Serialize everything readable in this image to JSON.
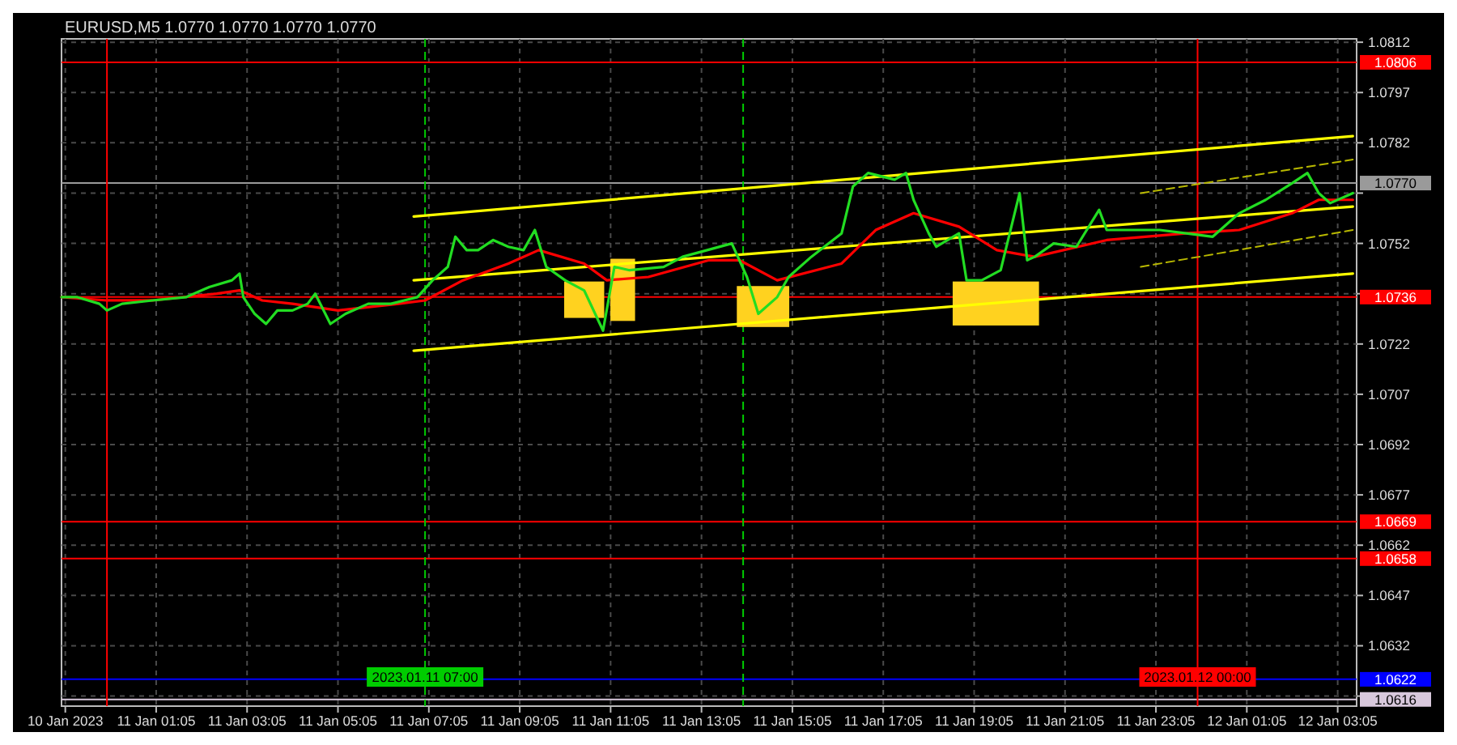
{
  "chart_data": {
    "type": "line",
    "title": "EURUSD,M5  1.0770 1.0770 1.0770 1.0770",
    "xlim": [
      "2023-01-10T23:00",
      "2023-01-12T03:30"
    ],
    "xticks": [
      {
        "value": "2023-01-10T23:05",
        "label": "10 Jan 2023"
      },
      {
        "value": "2023-01-11T01:05",
        "label": "11 Jan 01:05"
      },
      {
        "value": "2023-01-11T03:05",
        "label": "11 Jan 03:05"
      },
      {
        "value": "2023-01-11T05:05",
        "label": "11 Jan 05:05"
      },
      {
        "value": "2023-01-11T07:05",
        "label": "11 Jan 07:05"
      },
      {
        "value": "2023-01-11T09:05",
        "label": "11 Jan 09:05"
      },
      {
        "value": "2023-01-11T11:05",
        "label": "11 Jan 11:05"
      },
      {
        "value": "2023-01-11T13:05",
        "label": "11 Jan 13:05"
      },
      {
        "value": "2023-01-11T15:05",
        "label": "11 Jan 15:05"
      },
      {
        "value": "2023-01-11T17:05",
        "label": "11 Jan 17:05"
      },
      {
        "value": "2023-01-11T19:05",
        "label": "11 Jan 19:05"
      },
      {
        "value": "2023-01-11T21:05",
        "label": "11 Jan 21:05"
      },
      {
        "value": "2023-01-11T23:05",
        "label": "11 Jan 23:05"
      },
      {
        "value": "2023-01-12T01:05",
        "label": "12 Jan 01:05"
      },
      {
        "value": "2023-01-12T03:05",
        "label": "12 Jan 03:05"
      }
    ],
    "ylim": [
      1.0614,
      1.0813
    ],
    "yticks": [
      1.0812,
      1.0797,
      1.0782,
      {
        "value": 1.0767,
        "label": null
      },
      1.0752,
      {
        "value": 1.0737,
        "label": null
      },
      1.0722,
      1.0707,
      1.0692,
      1.0677,
      1.0662,
      1.0647,
      1.0632,
      {
        "value": 1.0617,
        "label": null
      }
    ],
    "grid": true,
    "series": [
      {
        "color": "#22dd22",
        "x": [
          "2023-01-10T23:00",
          "2023-01-10T23:20",
          "2023-01-10T23:50",
          "2023-01-11T00:00",
          "2023-01-11T00:20",
          "2023-01-11T01:00",
          "2023-01-11T01:45",
          "2023-01-11T02:15",
          "2023-01-11T02:45",
          "2023-01-11T02:55",
          "2023-01-11T03:00",
          "2023-01-11T03:15",
          "2023-01-11T03:30",
          "2023-01-11T03:45",
          "2023-01-11T04:05",
          "2023-01-11T04:25",
          "2023-01-11T04:35",
          "2023-01-11T04:55",
          "2023-01-11T05:15",
          "2023-01-11T05:45",
          "2023-01-11T06:15",
          "2023-01-11T06:50",
          "2023-01-11T07:10",
          "2023-01-11T07:30",
          "2023-01-11T07:40",
          "2023-01-11T07:55",
          "2023-01-11T08:10",
          "2023-01-11T08:30",
          "2023-01-11T08:50",
          "2023-01-11T09:10",
          "2023-01-11T09:25",
          "2023-01-11T09:40",
          "2023-01-11T10:05",
          "2023-01-11T10:30",
          "2023-01-11T10:55",
          "2023-01-11T11:10",
          "2023-01-11T11:30",
          "2023-01-11T12:15",
          "2023-01-11T12:40",
          "2023-01-11T13:45",
          "2023-01-11T14:05",
          "2023-01-11T14:20",
          "2023-01-11T14:45",
          "2023-01-11T15:00",
          "2023-01-11T15:30",
          "2023-01-11T16:10",
          "2023-01-11T16:25",
          "2023-01-11T16:45",
          "2023-01-11T17:20",
          "2023-01-11T17:35",
          "2023-01-11T17:45",
          "2023-01-11T18:05",
          "2023-01-11T18:15",
          "2023-01-11T18:45",
          "2023-01-11T18:55",
          "2023-01-11T19:15",
          "2023-01-11T19:40",
          "2023-01-11T20:05",
          "2023-01-11T20:15",
          "2023-01-11T20:25",
          "2023-01-11T20:50",
          "2023-01-11T21:20",
          "2023-01-11T21:50",
          "2023-01-11T22:00",
          "2023-01-11T22:45",
          "2023-01-11T23:10",
          "2023-01-11T23:45",
          "2023-01-12T00:20",
          "2023-01-12T00:55",
          "2023-01-12T01:30",
          "2023-01-12T02:05",
          "2023-01-12T02:25",
          "2023-01-12T02:40",
          "2023-01-12T02:55",
          "2023-01-12T03:25"
        ],
        "values": [
          1.0736,
          1.0736,
          1.0734,
          1.0732,
          1.0734,
          1.0735,
          1.0736,
          1.0739,
          1.0741,
          1.0743,
          1.0736,
          1.0731,
          1.0728,
          1.0732,
          1.0732,
          1.0734,
          1.0737,
          1.0728,
          1.0731,
          1.0734,
          1.0734,
          1.0736,
          1.0741,
          1.0745,
          1.0754,
          1.075,
          1.075,
          1.0753,
          1.0751,
          1.075,
          1.0756,
          1.0745,
          1.0741,
          1.0738,
          1.0726,
          1.0745,
          1.0744,
          1.0745,
          1.0748,
          1.0752,
          1.0742,
          1.0731,
          1.0736,
          1.0742,
          1.0748,
          1.0755,
          1.0769,
          1.0773,
          1.0771,
          1.0773,
          1.0765,
          1.0755,
          1.0751,
          1.0755,
          1.0741,
          1.0741,
          1.0744,
          1.0767,
          1.0747,
          1.0748,
          1.0752,
          1.0751,
          1.0762,
          1.0756,
          1.0756,
          1.0756,
          1.0755,
          1.0754,
          1.0761,
          1.0765,
          1.077,
          1.0773,
          1.0767,
          1.0764,
          1.0767
        ]
      },
      {
        "color": "#ff0000",
        "x": [
          "2023-01-10T23:00",
          "2023-01-11T00:00",
          "2023-01-11T01:00",
          "2023-01-11T02:25",
          "2023-01-11T02:55",
          "2023-01-11T03:25",
          "2023-01-11T04:05",
          "2023-01-11T05:05",
          "2023-01-11T06:25",
          "2023-01-11T07:00",
          "2023-01-11T07:50",
          "2023-01-11T08:50",
          "2023-01-11T09:30",
          "2023-01-11T10:30",
          "2023-01-11T11:00",
          "2023-01-11T11:55",
          "2023-01-11T13:15",
          "2023-01-11T13:55",
          "2023-01-11T14:45",
          "2023-01-11T16:10",
          "2023-01-11T16:55",
          "2023-01-11T17:45",
          "2023-01-11T18:45",
          "2023-01-11T19:35",
          "2023-01-11T20:25",
          "2023-01-11T22:00",
          "2023-01-11T23:45",
          "2023-01-12T00:55",
          "2023-01-12T02:05",
          "2023-01-12T02:40",
          "2023-01-12T03:25"
        ],
        "values": [
          1.0736,
          1.0735,
          1.0735,
          1.0737,
          1.0738,
          1.0735,
          1.0734,
          1.0732,
          1.0734,
          1.0735,
          1.0741,
          1.0746,
          1.075,
          1.0746,
          1.0741,
          1.0742,
          1.0747,
          1.0747,
          1.0741,
          1.0746,
          1.0756,
          1.0761,
          1.0757,
          1.075,
          1.0748,
          1.0753,
          1.0755,
          1.0756,
          1.0761,
          1.0765,
          1.0765
        ]
      },
      {
        "color": "#ffff00",
        "x": [
          "2023-01-11T06:45",
          "2023-01-12T03:25"
        ],
        "values": [
          1.076,
          1.0784
        ]
      },
      {
        "color": "#ffff00",
        "x": [
          "2023-01-11T06:45",
          "2023-01-12T03:25"
        ],
        "values": [
          1.0741,
          1.0763
        ]
      },
      {
        "color": "#ffff00",
        "x": [
          "2023-01-11T06:45",
          "2023-01-12T03:25"
        ],
        "values": [
          1.072,
          1.0743
        ]
      },
      {
        "color": "#b8b800",
        "line_style": "dashed",
        "x": [
          "2023-01-11T22:45",
          "2023-01-12T03:25"
        ],
        "values": [
          1.0767,
          1.0777
        ]
      },
      {
        "color": "#b8b800",
        "line_style": "dashed",
        "x": [
          "2023-01-11T22:45",
          "2023-01-12T03:25"
        ],
        "values": [
          1.0745,
          1.0756
        ]
      }
    ],
    "ref_lines": [
      {
        "axis": "y",
        "value": 1.0806,
        "label": "1.0806",
        "color": "#ff0000"
      },
      {
        "axis": "y",
        "value": 1.077,
        "label": "1.0770",
        "color": "#9a9a9a"
      },
      {
        "axis": "y",
        "value": 1.0736,
        "label": "1.0736",
        "color": "#ff0000"
      },
      {
        "axis": "y",
        "value": 1.0669,
        "label": "1.0669",
        "color": "#ff0000"
      },
      {
        "axis": "y",
        "value": 1.0658,
        "label": "1.0658",
        "color": "#ff0000"
      },
      {
        "axis": "y",
        "value": 1.0622,
        "label": "1.0622",
        "color": "#0000ff"
      },
      {
        "axis": "y",
        "value": 1.0616,
        "label": "1.0616",
        "color": "#d8c8dc"
      },
      {
        "axis": "x",
        "value": "2023-01-11T00:00",
        "color": "#ff0000"
      },
      {
        "axis": "x",
        "value": "2023-01-11T07:00",
        "label": "2023.01.11 07:00",
        "color": "#00cc00",
        "line_style": "dashed"
      },
      {
        "axis": "x",
        "value": "2023-01-11T14:00",
        "color": "#00cc00",
        "line_style": "dashed"
      },
      {
        "axis": "x",
        "value": "2023-01-12T00:00",
        "label": "2023.01.12 00:00",
        "color": "#ff0000"
      }
    ]
  }
}
